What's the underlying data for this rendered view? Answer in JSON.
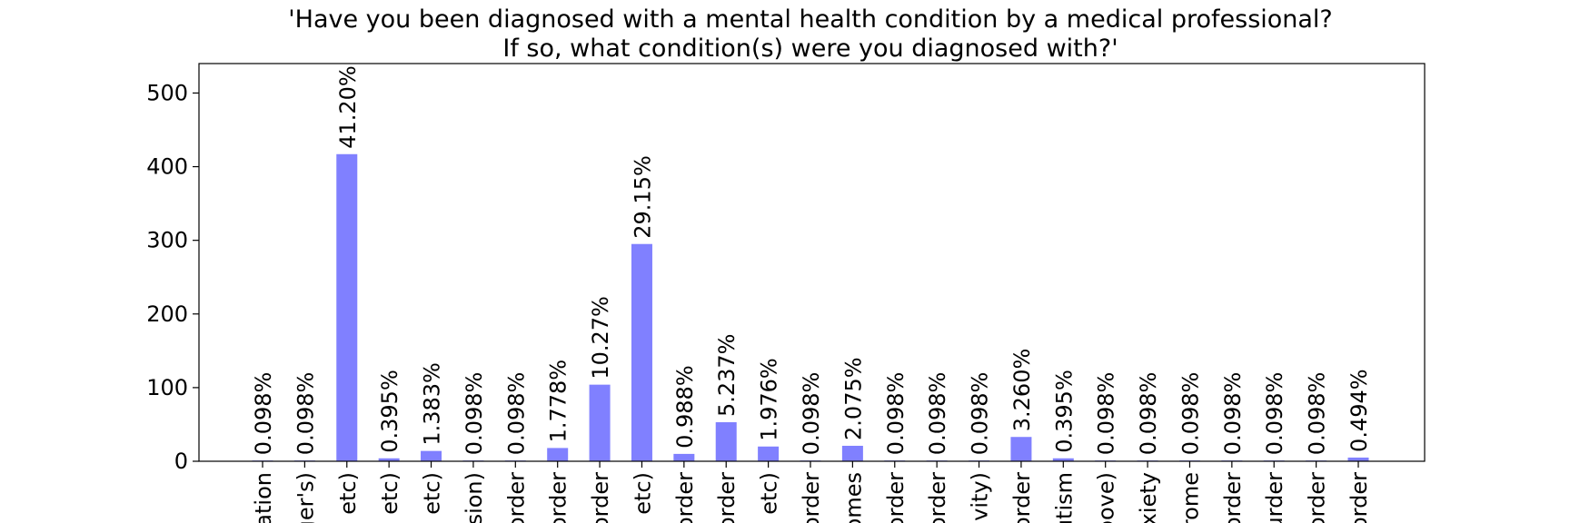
{
  "chart_data": {
    "type": "bar",
    "title_lines": [
      "'Have you been diagnosed with a mental health condition by a medical professional?",
      "If so, what condition(s) were you diagnosed with?'"
    ],
    "xlabel": "",
    "ylabel": "",
    "ylim": [
      0,
      540
    ],
    "yticks": [
      0,
      100,
      200,
      300,
      400,
      500
    ],
    "grid": false,
    "bar_color": "#8080ff",
    "categories": [
      "eation",
      "ger's)",
      ", etc)",
      ", etc)",
      ", etc)",
      "rsion)",
      "order",
      "order",
      "order",
      ", etc)",
      "order",
      "order",
      ", etc)",
      "order",
      "omes",
      "order",
      "order",
      "tivity)",
      "order",
      "utism",
      "bove)",
      "nxiety",
      "rome",
      "order",
      "urder",
      "order",
      "order"
    ],
    "values": [
      1,
      1,
      417,
      4,
      14,
      1,
      1,
      18,
      104,
      295,
      10,
      53,
      20,
      1,
      21,
      1,
      1,
      1,
      33,
      4,
      1,
      1,
      1,
      1,
      1,
      1,
      5
    ],
    "labels": [
      "0.098%",
      "0.098%",
      "41.20%",
      "0.395%",
      "1.383%",
      "0.098%",
      "0.098%",
      "1.778%",
      "10.27%",
      "29.15%",
      "0.988%",
      "5.237%",
      "1.976%",
      "0.098%",
      "2.075%",
      "0.098%",
      "0.098%",
      "0.098%",
      "3.260%",
      "0.395%",
      "0.098%",
      "0.098%",
      "0.098%",
      "0.098%",
      "0.098%",
      "0.098%",
      "0.494%"
    ]
  }
}
